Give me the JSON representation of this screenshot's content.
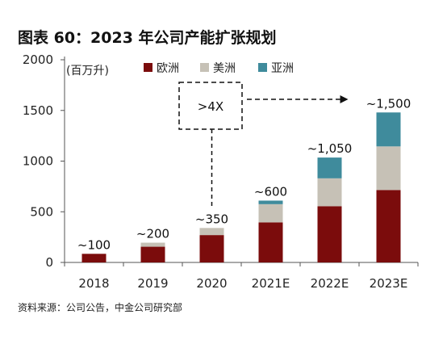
{
  "title": "图表 60：2023 年公司产能扩张规划",
  "source": "资料来源：公司公告，中金公司研究部",
  "chart_data": {
    "type": "bar",
    "stacked": true,
    "unit_label": "(百万升)",
    "categories": [
      "2018",
      "2019",
      "2020",
      "2021E",
      "2022E",
      "2023E"
    ],
    "series": [
      {
        "name": "欧洲",
        "color": "#7b0c0c",
        "values": [
          85,
          155,
          270,
          395,
          555,
          715
        ]
      },
      {
        "name": "美洲",
        "color": "#c6c1b6",
        "values": [
          0,
          40,
          70,
          180,
          275,
          430
        ]
      },
      {
        "name": "亚洲",
        "color": "#3f8b9c",
        "values": [
          0,
          0,
          0,
          35,
          205,
          335
        ]
      }
    ],
    "total_labels": [
      "~100",
      "~200",
      "~350",
      "~600",
      "~1,050",
      "~1,500"
    ],
    "ylim": [
      0,
      2000
    ],
    "yticks": [
      0,
      500,
      1000,
      1500,
      2000
    ],
    "legend_position": "top",
    "annotation": {
      "text": ">4X",
      "from": "2020",
      "to": "2023E"
    },
    "grid": false
  }
}
